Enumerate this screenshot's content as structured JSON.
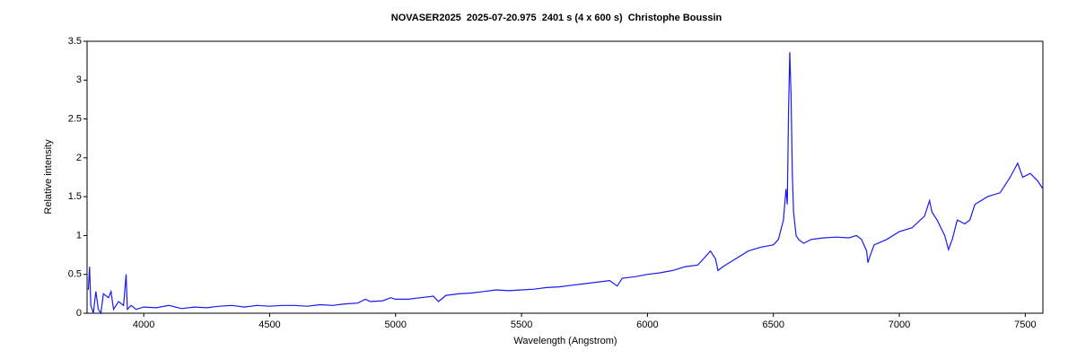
{
  "chart_data": {
    "type": "line",
    "title": "NOVASER2025  2025-07-20.975  2401 s (4 x 600 s)  Christophe Boussin",
    "x_label": "Wavelength (Angstrom)",
    "y_label": "Relative intensity",
    "xlim": [
      3775,
      7570
    ],
    "ylim": [
      0,
      3.5
    ],
    "xticks": [
      4000,
      4500,
      5000,
      5500,
      6000,
      6500,
      7000,
      7500
    ],
    "yticks": [
      0,
      0.5,
      1,
      1.5,
      2,
      2.5,
      3,
      3.5
    ],
    "series": [
      {
        "color": "#1a1aee",
        "x": [
          3780,
          3785,
          3790,
          3800,
          3810,
          3820,
          3830,
          3840,
          3860,
          3870,
          3880,
          3900,
          3920,
          3930,
          3935,
          3950,
          3970,
          4000,
          4050,
          4100,
          4150,
          4200,
          4250,
          4300,
          4350,
          4400,
          4450,
          4500,
          4550,
          4600,
          4650,
          4700,
          4750,
          4800,
          4850,
          4880,
          4900,
          4950,
          4980,
          5000,
          5050,
          5100,
          5150,
          5170,
          5200,
          5250,
          5300,
          5350,
          5400,
          5450,
          5500,
          5550,
          5600,
          5650,
          5700,
          5750,
          5800,
          5850,
          5880,
          5900,
          5950,
          6000,
          6050,
          6100,
          6150,
          6200,
          6250,
          6270,
          6280,
          6300,
          6350,
          6400,
          6450,
          6500,
          6520,
          6540,
          6550,
          6555,
          6560,
          6565,
          6570,
          6575,
          6580,
          6590,
          6600,
          6620,
          6650,
          6700,
          6750,
          6800,
          6830,
          6850,
          6870,
          6875,
          6885,
          6900,
          6950,
          7000,
          7050,
          7100,
          7120,
          7130,
          7150,
          7180,
          7195,
          7210,
          7230,
          7260,
          7280,
          7300,
          7350,
          7400,
          7440,
          7470,
          7490,
          7520,
          7550,
          7570
        ],
        "values": [
          0.3,
          0.6,
          0.1,
          0.0,
          0.28,
          0.05,
          0.0,
          0.25,
          0.2,
          0.28,
          0.05,
          0.15,
          0.1,
          0.5,
          0.05,
          0.1,
          0.05,
          0.08,
          0.07,
          0.1,
          0.06,
          0.08,
          0.07,
          0.09,
          0.1,
          0.08,
          0.1,
          0.09,
          0.1,
          0.1,
          0.09,
          0.11,
          0.1,
          0.12,
          0.13,
          0.18,
          0.15,
          0.16,
          0.2,
          0.18,
          0.18,
          0.2,
          0.22,
          0.15,
          0.23,
          0.25,
          0.26,
          0.28,
          0.3,
          0.29,
          0.3,
          0.31,
          0.33,
          0.34,
          0.36,
          0.38,
          0.4,
          0.42,
          0.35,
          0.45,
          0.47,
          0.5,
          0.52,
          0.55,
          0.6,
          0.62,
          0.8,
          0.7,
          0.55,
          0.6,
          0.7,
          0.8,
          0.85,
          0.88,
          0.95,
          1.2,
          1.6,
          1.4,
          2.6,
          3.36,
          2.8,
          1.8,
          1.3,
          1.0,
          0.95,
          0.9,
          0.95,
          0.97,
          0.98,
          0.97,
          1.0,
          0.95,
          0.8,
          0.65,
          0.75,
          0.88,
          0.95,
          1.05,
          1.1,
          1.25,
          1.45,
          1.3,
          1.2,
          1.0,
          0.82,
          0.95,
          1.2,
          1.15,
          1.2,
          1.4,
          1.5,
          1.55,
          1.75,
          1.93,
          1.75,
          1.8,
          1.7,
          1.6
        ]
      }
    ]
  }
}
